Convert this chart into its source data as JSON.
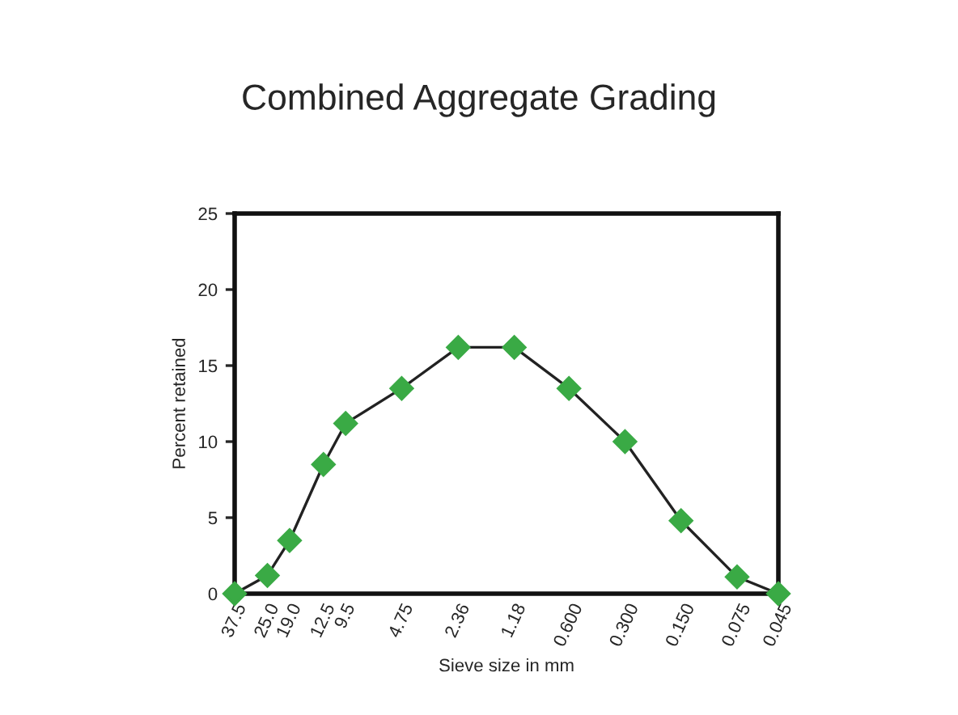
{
  "chart_data": {
    "type": "line",
    "title": "Combined Aggregate Grading",
    "xlabel": "Sieve size in mm",
    "ylabel": "Percent retained",
    "x": [
      37.5,
      25.0,
      19.0,
      12.5,
      9.5,
      4.75,
      2.36,
      1.18,
      0.6,
      0.3,
      0.15,
      0.075,
      0.045
    ],
    "series": [
      {
        "color": "#3aaa45",
        "values": [
          0,
          1.2,
          3.5,
          8.5,
          11.2,
          13.5,
          16.2,
          16.2,
          13.5,
          10.0,
          4.8,
          1.1,
          0
        ]
      }
    ],
    "log": "x",
    "xlim": [
      37.5,
      0.045
    ],
    "xticks": [
      37.5,
      {
        "value": 25.0,
        "label": "25.0"
      },
      {
        "value": 19.0,
        "label": "19.0"
      },
      12.5,
      9.5,
      4.75,
      2.36,
      1.18,
      {
        "value": 0.6,
        "label": "0.600"
      },
      {
        "value": 0.3,
        "label": "0.300"
      },
      {
        "value": 0.15,
        "label": "0.150"
      },
      0.075,
      0.045
    ],
    "ylim": [
      0,
      25
    ],
    "yticks": [
      0,
      5,
      10,
      15,
      20,
      25
    ],
    "grid": false,
    "marker": "diamond",
    "line_style": "solid"
  }
}
